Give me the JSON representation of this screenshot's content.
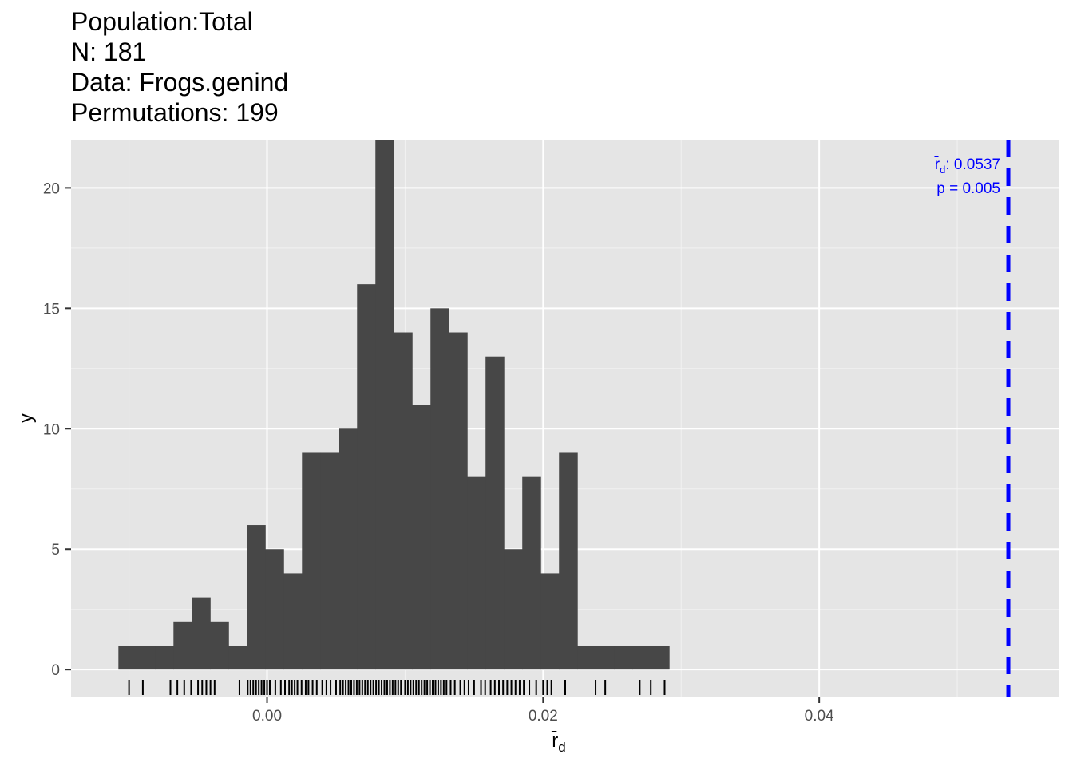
{
  "header": {
    "population": "Population:Total",
    "n": "N: 181",
    "data": "Data: Frogs.genind",
    "permutations": "Permutations: 199"
  },
  "chart_data": {
    "type": "bar",
    "xlabel_base": "r̄",
    "xlabel_sub": "d",
    "ylabel": "y",
    "xlim": [
      -0.0142,
      0.0574
    ],
    "ylim": [
      -1.12,
      22.0
    ],
    "x_ticks": [
      0.0,
      0.02,
      0.04
    ],
    "x_tick_labels": [
      "0.00",
      "0.02",
      "0.04"
    ],
    "y_ticks": [
      0,
      5,
      10,
      15,
      20
    ],
    "y_tick_labels": [
      "0",
      "5",
      "10",
      "15",
      "20"
    ],
    "grid": true,
    "bin_width": 0.00133,
    "bin_start": -0.01077,
    "counts": [
      1,
      1,
      1,
      2,
      3,
      2,
      1,
      6,
      5,
      4,
      9,
      9,
      10,
      16,
      22,
      14,
      11,
      15,
      14,
      8,
      13,
      5,
      8,
      4,
      9,
      1,
      1,
      1,
      1,
      1
    ],
    "rug": [
      -0.01,
      -0.009,
      -0.007,
      -0.0065,
      -0.006,
      -0.0055,
      -0.005,
      -0.0047,
      -0.0044,
      -0.0041,
      -0.0038,
      -0.002,
      -0.0014,
      -0.0012,
      -0.001,
      -0.0008,
      -0.0006,
      -0.0004,
      -0.0002,
      0.0,
      0.0002,
      0.0006,
      0.001,
      0.0013,
      0.0016,
      0.0018,
      0.002,
      0.0022,
      0.0025,
      0.0028,
      0.003,
      0.0033,
      0.0036,
      0.004,
      0.0043,
      0.0046,
      0.005,
      0.0053,
      0.0055,
      0.0057,
      0.0059,
      0.0061,
      0.0063,
      0.0065,
      0.0067,
      0.0069,
      0.0071,
      0.0073,
      0.0075,
      0.0077,
      0.0079,
      0.0081,
      0.0083,
      0.0085,
      0.0087,
      0.0089,
      0.0091,
      0.0093,
      0.0095,
      0.0097,
      0.01,
      0.0102,
      0.0104,
      0.0106,
      0.0108,
      0.011,
      0.0112,
      0.0114,
      0.0116,
      0.0118,
      0.012,
      0.0122,
      0.0124,
      0.0126,
      0.0128,
      0.013,
      0.0133,
      0.0136,
      0.014,
      0.0143,
      0.0146,
      0.015,
      0.0155,
      0.0158,
      0.0162,
      0.0165,
      0.0168,
      0.0171,
      0.0174,
      0.0177,
      0.018,
      0.0183,
      0.0186,
      0.019,
      0.0195,
      0.02,
      0.0203,
      0.0206,
      0.0216,
      0.0238,
      0.0245,
      0.027,
      0.0278,
      0.0288
    ],
    "observed": {
      "value": 0.0537,
      "label_sub": "d",
      "label_value": ": 0.0537",
      "p_label": "p = 0.005",
      "color": "#0000ff"
    },
    "bar_color": "#474747",
    "panel_color": "#e5e5e5"
  }
}
